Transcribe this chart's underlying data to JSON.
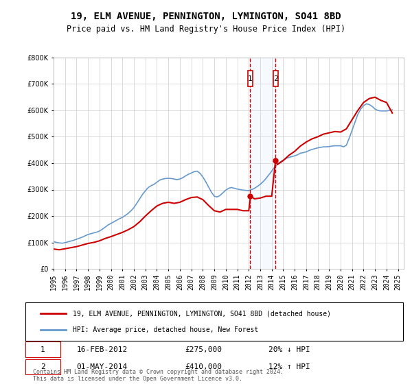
{
  "title": "19, ELM AVENUE, PENNINGTON, LYMINGTON, SO41 8BD",
  "subtitle": "Price paid vs. HM Land Registry's House Price Index (HPI)",
  "legend_line1": "19, ELM AVENUE, PENNINGTON, LYMINGTON, SO41 8BD (detached house)",
  "legend_line2": "HPI: Average price, detached house, New Forest",
  "transaction1_date": "2012-02-16",
  "transaction1_label": "16-FEB-2012",
  "transaction1_price": 275000,
  "transaction1_pct": "20% ↓ HPI",
  "transaction2_date": "2014-05-01",
  "transaction2_label": "01-MAY-2014",
  "transaction2_price": 410000,
  "transaction2_pct": "12% ↑ HPI",
  "ylim": [
    0,
    800000
  ],
  "xlim_start": "1995-01-01",
  "xlim_end": "2025-06-01",
  "line_color_property": "#cc0000",
  "line_color_hpi": "#6699cc",
  "marker_color": "#cc0000",
  "vline_color": "#cc0000",
  "shade_color": "#ddeeff",
  "footer": "Contains HM Land Registry data © Crown copyright and database right 2024.\nThis data is licensed under the Open Government Licence v3.0.",
  "hpi_data": {
    "years": [
      1995.0,
      1995.25,
      1995.5,
      1995.75,
      1996.0,
      1996.25,
      1996.5,
      1996.75,
      1997.0,
      1997.25,
      1997.5,
      1997.75,
      1998.0,
      1998.25,
      1998.5,
      1998.75,
      1999.0,
      1999.25,
      1999.5,
      1999.75,
      2000.0,
      2000.25,
      2000.5,
      2000.75,
      2001.0,
      2001.25,
      2001.5,
      2001.75,
      2002.0,
      2002.25,
      2002.5,
      2002.75,
      2003.0,
      2003.25,
      2003.5,
      2003.75,
      2004.0,
      2004.25,
      2004.5,
      2004.75,
      2005.0,
      2005.25,
      2005.5,
      2005.75,
      2006.0,
      2006.25,
      2006.5,
      2006.75,
      2007.0,
      2007.25,
      2007.5,
      2007.75,
      2008.0,
      2008.25,
      2008.5,
      2008.75,
      2009.0,
      2009.25,
      2009.5,
      2009.75,
      2010.0,
      2010.25,
      2010.5,
      2010.75,
      2011.0,
      2011.25,
      2011.5,
      2011.75,
      2012.0,
      2012.25,
      2012.5,
      2012.75,
      2013.0,
      2013.25,
      2013.5,
      2013.75,
      2014.0,
      2014.25,
      2014.5,
      2014.75,
      2015.0,
      2015.25,
      2015.5,
      2015.75,
      2016.0,
      2016.25,
      2016.5,
      2016.75,
      2017.0,
      2017.25,
      2017.5,
      2017.75,
      2018.0,
      2018.25,
      2018.5,
      2018.75,
      2019.0,
      2019.25,
      2019.5,
      2019.75,
      2020.0,
      2020.25,
      2020.5,
      2020.75,
      2021.0,
      2021.25,
      2021.5,
      2021.75,
      2022.0,
      2022.25,
      2022.5,
      2022.75,
      2023.0,
      2023.25,
      2023.5,
      2023.75,
      2024.0,
      2024.25,
      2024.5
    ],
    "values": [
      103000,
      100000,
      98000,
      97000,
      99000,
      102000,
      105000,
      108000,
      112000,
      116000,
      120000,
      125000,
      130000,
      133000,
      136000,
      139000,
      143000,
      150000,
      158000,
      166000,
      172000,
      178000,
      184000,
      190000,
      195000,
      202000,
      210000,
      220000,
      232000,
      248000,
      265000,
      282000,
      296000,
      308000,
      315000,
      320000,
      328000,
      336000,
      340000,
      342000,
      343000,
      342000,
      340000,
      338000,
      340000,
      345000,
      352000,
      358000,
      363000,
      368000,
      370000,
      362000,
      348000,
      330000,
      310000,
      290000,
      275000,
      272000,
      278000,
      288000,
      298000,
      305000,
      308000,
      305000,
      302000,
      300000,
      298000,
      297000,
      296000,
      300000,
      305000,
      312000,
      320000,
      330000,
      342000,
      356000,
      370000,
      385000,
      396000,
      405000,
      412000,
      418000,
      422000,
      425000,
      428000,
      432000,
      438000,
      440000,
      443000,
      448000,
      452000,
      455000,
      458000,
      460000,
      462000,
      462000,
      463000,
      465000,
      466000,
      466000,
      466000,
      462000,
      468000,
      495000,
      525000,
      555000,
      585000,
      605000,
      618000,
      625000,
      622000,
      615000,
      605000,
      600000,
      598000,
      598000,
      598000,
      600000,
      602000
    ]
  },
  "property_data": {
    "years": [
      1995.0,
      1995.5,
      1996.0,
      1996.5,
      1997.0,
      1997.5,
      1998.0,
      1998.5,
      1999.0,
      1999.5,
      2000.0,
      2000.5,
      2001.0,
      2001.5,
      2002.0,
      2002.5,
      2003.0,
      2003.5,
      2004.0,
      2004.5,
      2005.0,
      2005.5,
      2006.0,
      2006.5,
      2007.0,
      2007.5,
      2008.0,
      2008.5,
      2009.0,
      2009.5,
      2010.0,
      2010.5,
      2011.0,
      2011.5,
      2012.0,
      2012.16,
      2012.5,
      2013.0,
      2013.5,
      2014.0,
      2014.33,
      2014.5,
      2015.0,
      2015.5,
      2016.0,
      2016.5,
      2017.0,
      2017.5,
      2018.0,
      2018.5,
      2019.0,
      2019.5,
      2020.0,
      2020.5,
      2021.0,
      2021.5,
      2022.0,
      2022.5,
      2023.0,
      2023.5,
      2024.0,
      2024.5
    ],
    "values": [
      75000,
      72000,
      76000,
      80000,
      84000,
      90000,
      96000,
      100000,
      106000,
      115000,
      122000,
      130000,
      138000,
      148000,
      160000,
      178000,
      200000,
      220000,
      238000,
      248000,
      252000,
      248000,
      252000,
      262000,
      270000,
      272000,
      262000,
      240000,
      220000,
      215000,
      225000,
      225000,
      225000,
      220000,
      220000,
      275000,
      265000,
      268000,
      275000,
      275000,
      410000,
      395000,
      410000,
      430000,
      445000,
      465000,
      480000,
      492000,
      500000,
      510000,
      515000,
      520000,
      518000,
      530000,
      565000,
      600000,
      630000,
      645000,
      650000,
      638000,
      630000,
      590000
    ]
  }
}
